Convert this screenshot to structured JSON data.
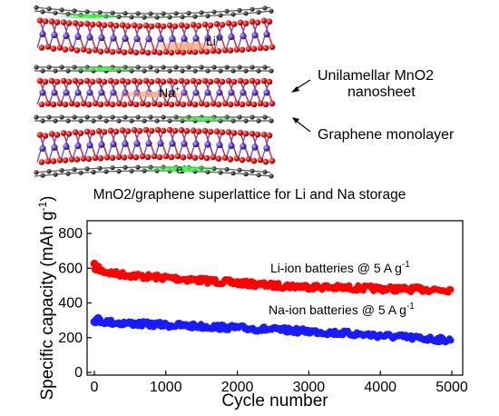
{
  "illustration": {
    "caption": "MnO2/graphene superlattice for Li and Na storage",
    "labels": {
      "mno2_line1": "Unilamellar MnO2",
      "mno2_line2": "nanosheet",
      "graphene": "Graphene monolayer",
      "li": "Li",
      "li_sup": "+",
      "na": "Na",
      "na_sup": "+",
      "e": "e",
      "e_sup": "-"
    },
    "colors": {
      "oxygen": "#e01818",
      "manganese": "#5a3ec8",
      "carbon": "#404040",
      "electron_path": "#22cc33",
      "ion_path": "#ff8a50"
    }
  },
  "chart_data": {
    "type": "scatter",
    "xlabel": "Cycle number",
    "ylabel": "Specific capacity (mAh g",
    "ylabel_sup": "-1",
    "ylabel_end": ")",
    "xlim": [
      0,
      5000
    ],
    "ylim": [
      0,
      900
    ],
    "xticks": [
      "0",
      "1000",
      "2000",
      "3000",
      "4000",
      "5000"
    ],
    "yticks": [
      "0",
      "200",
      "400",
      "600",
      "800"
    ],
    "series": [
      {
        "name": "Li-ion batteries @ 5 A g",
        "name_sup": "-1",
        "color": "#ff0000",
        "x": [
          0,
          50,
          100,
          200,
          300,
          500,
          700,
          1000,
          1500,
          2000,
          2500,
          3000,
          3500,
          4000,
          4500,
          5000
        ],
        "y": [
          610,
          600,
          585,
          575,
          568,
          560,
          552,
          545,
          530,
          515,
          500,
          493,
          487,
          482,
          478,
          476
        ]
      },
      {
        "name": "Na-ion batteries @ 5 A g",
        "name_sup": "-1",
        "color": "#1a1aff",
        "x": [
          0,
          50,
          100,
          200,
          300,
          500,
          700,
          1000,
          1500,
          2000,
          2500,
          3000,
          3500,
          4000,
          4500,
          5000
        ],
        "y": [
          305,
          300,
          295,
          290,
          286,
          282,
          278,
          273,
          265,
          256,
          246,
          236,
          225,
          212,
          198,
          185
        ]
      }
    ]
  }
}
